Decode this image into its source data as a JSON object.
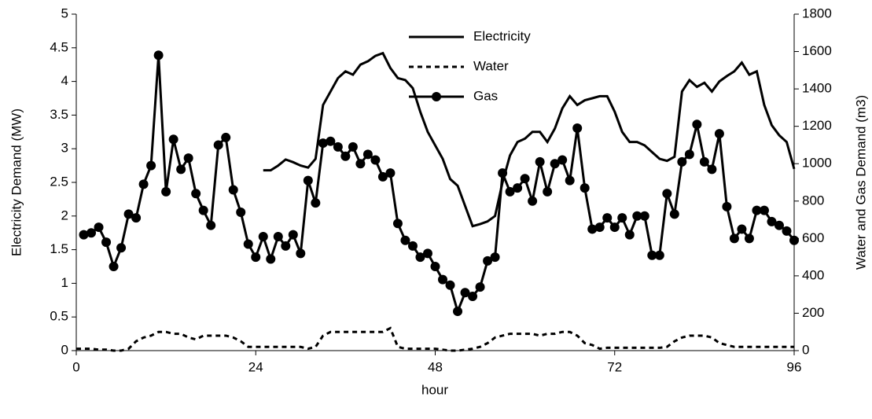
{
  "chart_data": {
    "type": "line",
    "x_label": "hour",
    "y_label": "Electricity Demand (MW)",
    "y2_label": "Water and Gas Demand (m3)",
    "x": [
      0,
      1,
      2,
      3,
      4,
      5,
      6,
      7,
      8,
      9,
      10,
      11,
      12,
      13,
      14,
      15,
      16,
      17,
      18,
      19,
      20,
      21,
      22,
      23,
      24,
      25,
      26,
      27,
      28,
      29,
      30,
      31,
      32,
      33,
      34,
      35,
      36,
      37,
      38,
      39,
      40,
      41,
      42,
      43,
      44,
      45,
      46,
      47,
      48,
      49,
      50,
      51,
      52,
      53,
      54,
      55,
      56,
      57,
      58,
      59,
      60,
      61,
      62,
      63,
      64,
      65,
      66,
      67,
      68,
      69,
      70,
      71,
      72,
      73,
      74,
      75,
      76,
      77,
      78,
      79,
      80,
      81,
      82,
      83,
      84,
      85,
      86,
      87,
      88,
      89,
      90,
      91,
      92,
      93,
      94,
      95,
      96
    ],
    "xlim": [
      0,
      96
    ],
    "xticks": [
      0,
      24,
      48,
      72,
      96
    ],
    "ylim": [
      0,
      5
    ],
    "yticks": [
      0,
      0.5,
      1,
      1.5,
      2,
      2.5,
      3,
      3.5,
      4,
      4.5,
      5
    ],
    "y2lim": [
      0,
      1800
    ],
    "y2ticks": [
      0,
      200,
      400,
      600,
      800,
      1000,
      1200,
      1400,
      1600,
      1800
    ],
    "legend": "top",
    "series": [
      {
        "name": "Electricity",
        "color": "#000000",
        "line_style": "solid",
        "axis": "y",
        "values": [
          null,
          null,
          null,
          null,
          null,
          null,
          null,
          null,
          null,
          null,
          null,
          null,
          null,
          null,
          null,
          null,
          null,
          null,
          null,
          null,
          null,
          null,
          null,
          null,
          null,
          2.68,
          2.68,
          2.75,
          2.84,
          2.8,
          2.75,
          2.72,
          2.85,
          3.65,
          3.85,
          4.05,
          4.15,
          4.1,
          4.25,
          4.3,
          4.38,
          4.42,
          4.2,
          4.05,
          4.02,
          3.9,
          3.55,
          3.25,
          3.05,
          2.85,
          2.55,
          2.45,
          2.15,
          1.85,
          1.88,
          1.92,
          2.0,
          2.5,
          2.9,
          3.1,
          3.15,
          3.25,
          3.25,
          3.1,
          3.3,
          3.6,
          3.78,
          3.65,
          3.72,
          3.75,
          3.78,
          3.78,
          3.55,
          3.25,
          3.1,
          3.1,
          3.05,
          2.95,
          2.85,
          2.82,
          2.88,
          3.85,
          4.02,
          3.92,
          3.98,
          3.85,
          4.0,
          4.08,
          4.15,
          4.28,
          4.1,
          4.15,
          3.65,
          3.35,
          3.2,
          3.1,
          2.7
        ]
      },
      {
        "name": "Water",
        "color": "#000000",
        "line_style": "dashed",
        "axis": "y2",
        "values": [
          10,
          10,
          10,
          5,
          5,
          0,
          0,
          10,
          50,
          70,
          80,
          100,
          100,
          90,
          90,
          70,
          60,
          80,
          80,
          80,
          80,
          70,
          50,
          20,
          20,
          20,
          20,
          20,
          20,
          20,
          20,
          10,
          20,
          80,
          100,
          100,
          100,
          100,
          100,
          100,
          100,
          100,
          120,
          20,
          10,
          10,
          10,
          10,
          10,
          5,
          0,
          0,
          5,
          10,
          20,
          40,
          70,
          80,
          90,
          90,
          90,
          90,
          80,
          90,
          90,
          100,
          100,
          80,
          40,
          30,
          10,
          15,
          15,
          15,
          15,
          15,
          15,
          15,
          15,
          20,
          50,
          70,
          80,
          80,
          80,
          70,
          40,
          30,
          20,
          20,
          20,
          20,
          20,
          20,
          20,
          20,
          20
        ]
      },
      {
        "name": "Gas",
        "color": "#000000",
        "line_style": "solid",
        "marker": "circle",
        "axis": "y2",
        "values": [
          null,
          620,
          630,
          660,
          580,
          450,
          550,
          730,
          710,
          890,
          990,
          1580,
          850,
          1130,
          970,
          1030,
          840,
          750,
          670,
          1100,
          1140,
          860,
          740,
          570,
          500,
          610,
          490,
          610,
          560,
          620,
          520,
          910,
          790,
          1110,
          1120,
          1090,
          1040,
          1090,
          1000,
          1050,
          1020,
          930,
          950,
          680,
          590,
          560,
          500,
          520,
          450,
          380,
          350,
          210,
          310,
          290,
          340,
          480,
          500,
          950,
          850,
          870,
          920,
          800,
          1010,
          850,
          1000,
          1020,
          910,
          1190,
          870,
          650,
          660,
          710,
          660,
          710,
          620,
          720,
          720,
          510,
          510,
          840,
          730,
          1010,
          1050,
          1210,
          1010,
          970,
          1160,
          770,
          600,
          650,
          600,
          750,
          750,
          690,
          670,
          640,
          590
        ]
      }
    ]
  }
}
